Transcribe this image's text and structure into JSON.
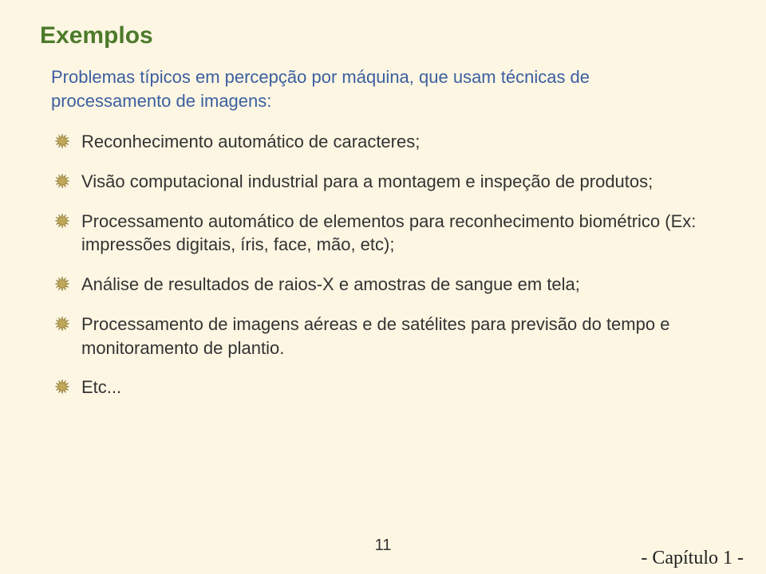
{
  "colors": {
    "background": "#fdf6e3",
    "title": "#4c7a2a",
    "intro": "#3b5fa0",
    "body": "#333333",
    "bullet_fill": "#bfa85a",
    "bullet_stroke": "#8a7738",
    "footer": "#333333",
    "chapter": "#222222"
  },
  "typography": {
    "title_fontsize": 30,
    "intro_fontsize": 22,
    "bullet_fontsize": 22,
    "footer_fontsize": 20,
    "chapter_fontsize": 24,
    "chapter_font_family": "Times New Roman"
  },
  "title": "Exemplos",
  "intro": "Problemas típicos em percepção por máquina, que usam técnicas de processamento de imagens:",
  "bullets": [
    " Reconhecimento automático de caracteres;",
    " Visão computacional industrial para a montagem e inspeção de produtos;",
    " Processamento automático de elementos para reconhecimento biométrico (Ex: impressões digitais, íris, face, mão, etc);",
    " Análise de resultados de raios-X e amostras de sangue em tela;",
    " Processamento de imagens aéreas e de satélites para previsão do tempo e monitoramento de plantio.",
    " Etc..."
  ],
  "footer": {
    "page_number": "11",
    "chapter": "- Capítulo 1 -"
  }
}
